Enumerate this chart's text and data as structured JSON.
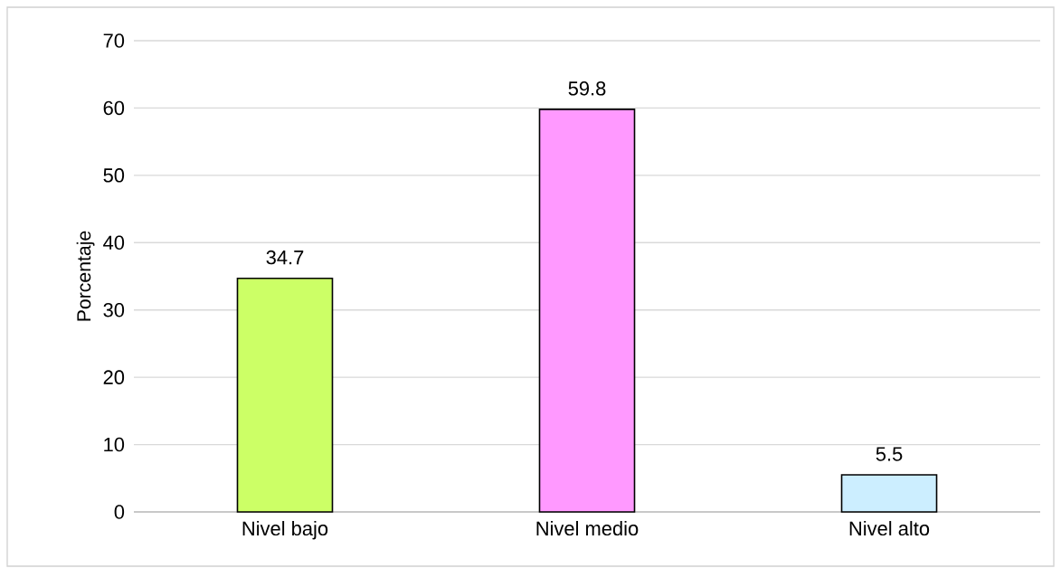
{
  "chart_data": {
    "type": "bar",
    "ylabel": "Porcentaje",
    "categories": [
      "Nivel bajo",
      "Nivel medio",
      "Nivel alto"
    ],
    "values": [
      34.7,
      59.8,
      5.5
    ],
    "colors": [
      "#ccff66",
      "#ff99ff",
      "#cceeff"
    ],
    "ylim": [
      0,
      70
    ],
    "yticks": [
      0,
      10,
      20,
      30,
      40,
      50,
      60,
      70
    ],
    "grid": "y",
    "data_labels": true
  }
}
